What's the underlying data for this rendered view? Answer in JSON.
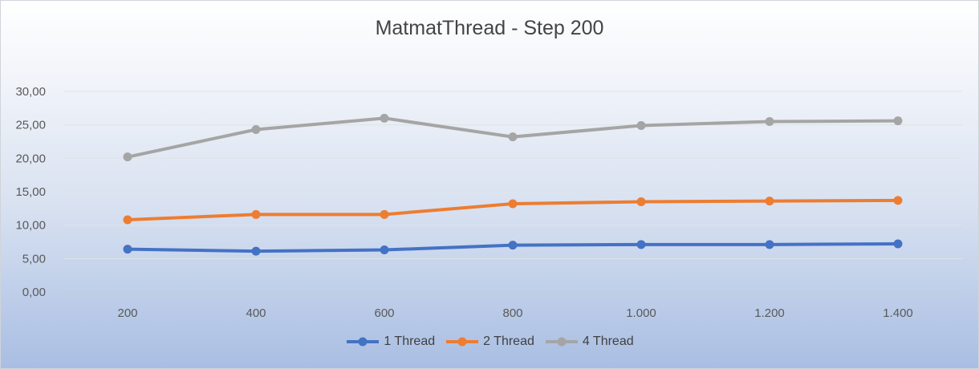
{
  "chart_data": {
    "type": "line",
    "title": "MatmatThread - Step 200",
    "xlabel": "",
    "ylabel": "",
    "categories": [
      "200",
      "400",
      "600",
      "800",
      "1.000",
      "1.200",
      "1.400"
    ],
    "y_ticks": [
      "0,00",
      "5,00",
      "10,00",
      "15,00",
      "20,00",
      "25,00",
      "30,00"
    ],
    "ylim": [
      0,
      30
    ],
    "grid": true,
    "legend_position": "bottom",
    "series": [
      {
        "name": "1 Thread",
        "color": "#4472c4",
        "values": [
          6.4,
          6.1,
          6.3,
          7.0,
          7.1,
          7.1,
          7.2
        ]
      },
      {
        "name": "2 Thread",
        "color": "#ed7d31",
        "values": [
          10.8,
          11.6,
          11.6,
          13.2,
          13.5,
          13.6,
          13.7
        ]
      },
      {
        "name": "4 Thread",
        "color": "#a5a5a5",
        "values": [
          20.2,
          24.3,
          26.0,
          23.2,
          24.9,
          25.5,
          25.6
        ]
      }
    ]
  }
}
